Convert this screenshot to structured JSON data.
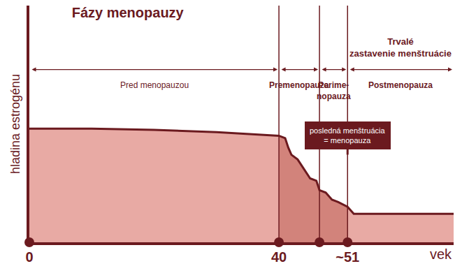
{
  "chart_data": {
    "type": "area",
    "title": "Fázy menopauzy",
    "y_label": "hladina estrogénu",
    "x_label": "vek",
    "x": [
      0,
      10,
      20,
      30,
      40,
      41,
      41.5,
      42,
      43,
      44,
      45,
      46,
      46.5,
      47.5,
      48.5,
      49.5,
      51,
      52,
      68
    ],
    "values": [
      48,
      48,
      47.5,
      46.5,
      45,
      44,
      40,
      37,
      35,
      31,
      27,
      26,
      22,
      21,
      18,
      17,
      15,
      12,
      12
    ],
    "color": "#6b1a1f",
    "xlim": [
      0,
      68
    ],
    "xticks": [
      0,
      40,
      {
        "value": 51,
        "label": "~51"
      }
    ],
    "ylim": [
      0,
      100
    ],
    "tick_labels": "x",
    "grid": false,
    "phases": [
      {
        "label": "Pred menopauzou",
        "start": 0,
        "end": 40,
        "color": "#e8aaa4"
      },
      {
        "label": "Premenopauza",
        "start": 40,
        "end": 46.5,
        "color": "#d2837b"
      },
      {
        "label": "Perime-\nnopauza",
        "start": 46.5,
        "end": 51,
        "color": "#d2837b"
      },
      {
        "label": "Postmenopauza",
        "start": 51,
        "end": 68,
        "color": "#e8aaa4",
        "note": "Trvalé\nzastavenie menštruácie"
      }
    ],
    "callout": {
      "text": "posledná menštruácia\n= menopauza",
      "x": 51
    }
  }
}
